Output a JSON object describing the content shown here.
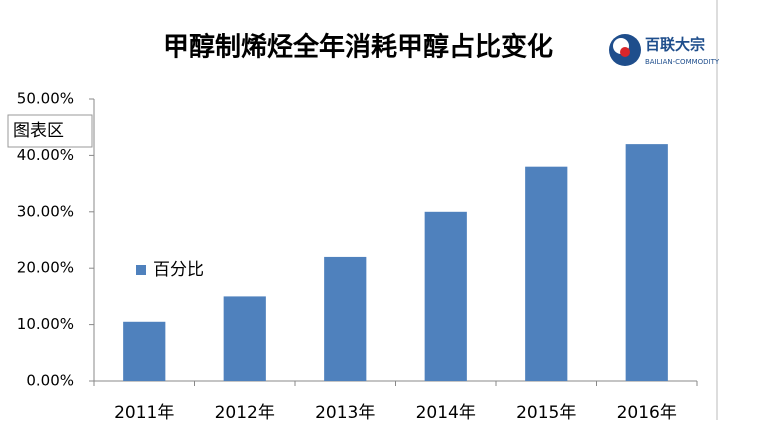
{
  "chart_data": {
    "type": "bar",
    "title": "甲醇制烯烃全年消耗甲醇占比变化",
    "categories": [
      "2011年",
      "2012年",
      "2013年",
      "2014年",
      "2015年",
      "2016年"
    ],
    "series": [
      {
        "name": "百分比",
        "color": "#4f81bd",
        "values": [
          10.5,
          15,
          22,
          30,
          38,
          42
        ]
      }
    ],
    "ylim": [
      0,
      50
    ],
    "yticks": [
      {
        "value": 0,
        "label": "0.00%"
      },
      {
        "value": 10,
        "label": "10.00%"
      },
      {
        "value": 20,
        "label": "20.00%"
      },
      {
        "value": 30,
        "label": "30.00%"
      },
      {
        "value": 40,
        "label": "40.00%"
      },
      {
        "value": 50,
        "label": "50.00%"
      }
    ],
    "grid": false
  },
  "logo": {
    "name": "百联大宗",
    "subtitle": "BAILIAN-COMMODITY"
  },
  "tooltip": "图表区"
}
